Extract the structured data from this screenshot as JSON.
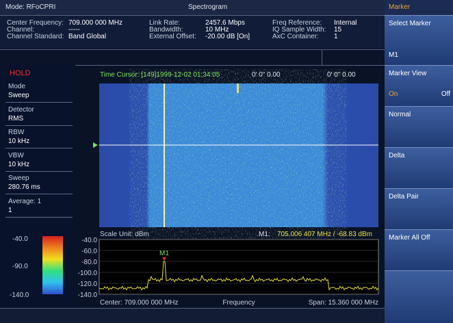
{
  "status_bar": {
    "mode": "Mode: RFoCPRI",
    "title": "Spectrogram"
  },
  "info": {
    "columns": [
      [
        {
          "label": "Center Frequency:",
          "value": "709.000 000 MHz"
        },
        {
          "label": "Channel:",
          "value": "-----"
        },
        {
          "label": "Channel Standard:",
          "value": "Band Global"
        }
      ],
      [
        {
          "label": "Link Rate:",
          "value": "2457.6 Mbps"
        },
        {
          "label": "Bandwidth:",
          "value": "10 MHz"
        },
        {
          "label": "External Offset:",
          "value": "-20.00 dB [On]"
        }
      ],
      [
        {
          "label": "Freq Reference:",
          "value": "Internal"
        },
        {
          "label": "IQ Sample Width:",
          "value": "15"
        },
        {
          "label": "AxC Container:",
          "value": "1"
        }
      ]
    ]
  },
  "sidebar": {
    "status": "HOLD",
    "items": [
      {
        "label": "Mode",
        "value": "Sweep"
      },
      {
        "label": "Detector",
        "value": "RMS"
      },
      {
        "label": "RBW",
        "value": "10 kHz"
      },
      {
        "label": "VBW",
        "value": "10 kHz"
      },
      {
        "label": "Sweep",
        "value": "280.76 ms"
      },
      {
        "label": "Average: 1",
        "value": "1"
      }
    ],
    "color_scale": [
      "-40.0",
      "-90.0",
      "-140.0"
    ]
  },
  "spectrogram": {
    "time_cursor": "Time Cursor: [149]1999-12-02 01:34:05",
    "position_1": "0' 0\" 0.00",
    "position_2": "0' 0\" 0.00"
  },
  "spectrum": {
    "scale_unit": "Scale Unit: dBm",
    "marker_label": "M1:",
    "marker_readout": "705.006 407 MHz / -68.83 dBm",
    "marker_name": "M1",
    "y_labels": [
      "-40.0",
      "-60.0",
      "-80.0",
      "-100.0",
      "-120.0",
      "-140.0"
    ],
    "center": "Center: 709.000 000 MHz",
    "x_label": "Frequency",
    "span": "Span: 15.360 000 MHz"
  },
  "menu": {
    "title": "Marker",
    "buttons": [
      {
        "label": "Select Marker",
        "value": "M1"
      },
      {
        "label": "Marker View",
        "on": "On",
        "off": "Off"
      },
      {
        "label": "Normal"
      },
      {
        "label": "Delta"
      },
      {
        "label": "Delta Pair"
      },
      {
        "label": "Marker All Off"
      }
    ]
  }
}
